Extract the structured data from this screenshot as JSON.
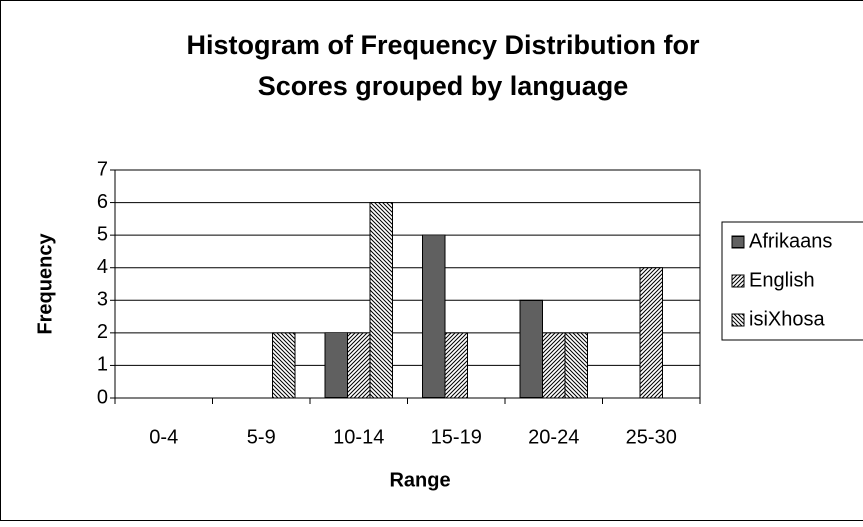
{
  "chart_data": {
    "type": "bar",
    "title": [
      "Histogram of Frequency Distribution for",
      "Scores grouped by language"
    ],
    "x_label": "Range",
    "y_label": "Frequency",
    "categories": [
      "0-4",
      "5-9",
      "10-14",
      "15-19",
      "20-24",
      "25-30"
    ],
    "series": [
      {
        "name": "Afrikaans",
        "color": "#000000",
        "pattern": "horizontal",
        "values": [
          0,
          0,
          2,
          5,
          3,
          0
        ]
      },
      {
        "name": "English",
        "color": "#000000",
        "pattern": "diagonal-up",
        "values": [
          0,
          0,
          2,
          2,
          2,
          4
        ]
      },
      {
        "name": "isiXhosa",
        "color": "#000000",
        "pattern": "diagonal-down",
        "values": [
          0,
          2,
          6,
          0,
          2,
          0
        ]
      }
    ],
    "ylim": [
      0,
      7
    ],
    "yticks": [
      0,
      1,
      2,
      3,
      4,
      5,
      6,
      7
    ],
    "grid": true,
    "legend": "right"
  }
}
